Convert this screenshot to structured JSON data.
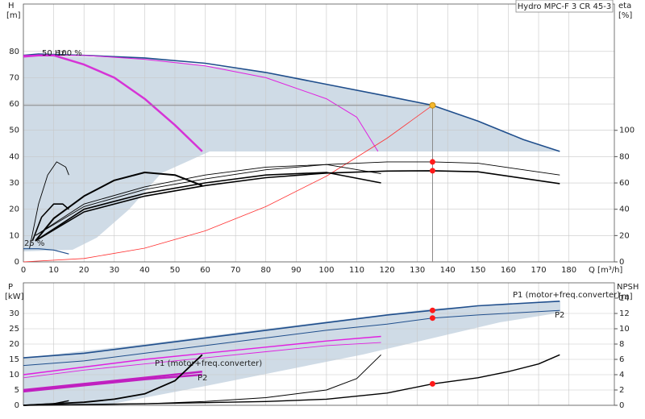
{
  "chart_data": [
    {
      "type": "line",
      "title": "Hydro MPC-F 3 CR 45-3",
      "y_label": "H",
      "y_unit": "[m]",
      "y2_label": "eta",
      "y2_unit": "[%]",
      "x_label": "Q [m³/h]",
      "annotations": [
        "50 Hz",
        "100 %",
        "25 %"
      ],
      "xlim": [
        0,
        195
      ],
      "xticks": [
        0,
        10,
        20,
        30,
        40,
        50,
        60,
        70,
        80,
        90,
        100,
        110,
        120,
        130,
        140,
        150,
        160,
        170,
        180
      ],
      "ylim": [
        0,
        98
      ],
      "yticks": [
        0,
        10,
        20,
        30,
        40,
        50,
        60,
        70,
        80
      ],
      "y2lim": [
        0,
        196
      ],
      "y2ticks": [
        0,
        20,
        40,
        60,
        80,
        100
      ],
      "grid": true,
      "series": [
        {
          "color": "#1f4e8c",
          "width": 1.6,
          "x": [
            0,
            5,
            20,
            40,
            60,
            80,
            100,
            120,
            135,
            150,
            165,
            177
          ],
          "values": [
            78.5,
            79,
            78.5,
            77.5,
            75.5,
            72,
            67.5,
            63,
            59.5,
            53.5,
            46.5,
            42
          ]
        },
        {
          "color": "#d633d6",
          "width": 2.5,
          "x": [
            0,
            5,
            10,
            20,
            30,
            40,
            50,
            59
          ],
          "values": [
            78,
            78.5,
            78.5,
            75,
            70,
            62,
            52,
            42
          ]
        },
        {
          "color": "#e020e0",
          "width": 1,
          "x": [
            0,
            20,
            40,
            60,
            80,
            100,
            110,
            117
          ],
          "values": [
            78.5,
            78.5,
            77,
            74.5,
            70,
            62,
            55,
            42
          ]
        },
        {
          "color": "#ff3030",
          "width": 0.8,
          "x": [
            0,
            20,
            40,
            60,
            80,
            100,
            120,
            135
          ],
          "values": [
            0,
            1.3,
            5.2,
            11.8,
            21,
            32.6,
            47,
            59.5
          ]
        },
        {
          "color": "#8a8a8a",
          "width": 1,
          "x": [
            135,
            135
          ],
          "values": [
            0,
            59.5
          ]
        },
        {
          "color": "#8a8a8a",
          "width": 1,
          "x": [
            0,
            135
          ],
          "values": [
            59.5,
            59.5
          ]
        },
        {
          "color": "#000000",
          "width": 1.6,
          "axis": "y2",
          "x": [
            4,
            20,
            40,
            60,
            80,
            100,
            120,
            135,
            150,
            177
          ],
          "values": [
            16,
            38,
            50,
            58,
            64,
            67.5,
            69,
            69.3,
            68.5,
            59.5
          ]
        },
        {
          "color": "#000000",
          "width": 0.9,
          "axis": "y2",
          "x": [
            4,
            20,
            40,
            60,
            80,
            100,
            120,
            135,
            150,
            177
          ],
          "values": [
            20,
            42,
            55,
            63,
            70,
            74,
            76,
            76,
            75,
            66
          ]
        },
        {
          "color": "#000000",
          "width": 1.6,
          "axis": "y2",
          "x": [
            4,
            20,
            40,
            60,
            80,
            100,
            118
          ],
          "values": [
            16,
            40,
            52,
            60,
            66,
            68,
            60
          ]
        },
        {
          "color": "#000000",
          "width": 0.9,
          "axis": "y2",
          "x": [
            4,
            20,
            40,
            60,
            80,
            100,
            118
          ],
          "values": [
            20,
            44,
            57,
            66,
            72,
            74,
            67
          ]
        },
        {
          "color": "#000000",
          "width": 2,
          "axis": "y2",
          "x": [
            4,
            10,
            20,
            30,
            40,
            50,
            59
          ],
          "values": [
            16,
            33,
            50,
            62,
            68,
            66,
            58
          ]
        },
        {
          "color": "#000000",
          "width": 0.9,
          "x": [
            2,
            5,
            8,
            11,
            14,
            15
          ],
          "values": [
            5,
            22,
            33,
            38,
            36,
            33
          ]
        },
        {
          "color": "#000000",
          "width": 1.6,
          "x": [
            3,
            6,
            10,
            13,
            15
          ],
          "values": [
            8,
            17,
            22,
            22,
            20
          ]
        },
        {
          "color": "#1f4e8c",
          "width": 1.2,
          "x": [
            0,
            5,
            10,
            15
          ],
          "values": [
            5,
            5,
            4.5,
            3
          ]
        },
        {
          "color": "#f5b82e",
          "marker": true,
          "x": [
            135
          ],
          "values": [
            59.5
          ]
        },
        {
          "color": "#ff1a1a",
          "marker": true,
          "axis": "y2",
          "x": [
            135
          ],
          "values": [
            76
          ]
        },
        {
          "color": "#ff1a1a",
          "marker": true,
          "axis": "y2",
          "x": [
            135
          ],
          "values": [
            69.3
          ]
        }
      ]
    },
    {
      "type": "line",
      "y_label": "P",
      "y_unit": "[kW]",
      "y2_label": "NPSH",
      "y2_unit": "[m]",
      "annotations": [
        "P1 (motor+freq.converter)",
        "P2",
        "P1 (motor+freq.converter)",
        "P2"
      ],
      "xlim": [
        0,
        195
      ],
      "xticks": [
        0,
        10,
        20,
        30,
        40,
        50,
        60,
        70,
        80,
        90,
        100,
        110,
        120,
        130,
        140,
        150,
        160,
        170,
        180
      ],
      "ylim": [
        0,
        40
      ],
      "yticks": [
        0,
        5,
        10,
        15,
        20,
        25,
        30
      ],
      "y2lim": [
        0,
        16
      ],
      "y2ticks": [
        0,
        2,
        4,
        6,
        8,
        10,
        12,
        14
      ],
      "grid": true,
      "series": [
        {
          "color": "#1f4e8c",
          "width": 1.6,
          "x": [
            0,
            20,
            40,
            60,
            80,
            100,
            120,
            135,
            150,
            177
          ],
          "values": [
            15.5,
            17,
            19.5,
            22,
            24.5,
            27,
            29.5,
            31,
            32.5,
            34
          ]
        },
        {
          "color": "#1f4e8c",
          "width": 1,
          "x": [
            0,
            20,
            40,
            60,
            80,
            100,
            120,
            135,
            150,
            177
          ],
          "values": [
            13,
            14.5,
            17,
            19.5,
            22,
            24.5,
            26.5,
            28.5,
            29.5,
            31
          ]
        },
        {
          "color": "#e020e0",
          "width": 1.4,
          "x": [
            0,
            20,
            40,
            60,
            80,
            100,
            118
          ],
          "values": [
            10,
            12.5,
            15,
            17,
            19,
            21,
            22.5
          ]
        },
        {
          "color": "#e020e0",
          "width": 0.9,
          "x": [
            0,
            20,
            40,
            60,
            80,
            100,
            118
          ],
          "values": [
            9,
            11.5,
            13.5,
            15.5,
            17.5,
            19.5,
            20.5
          ]
        },
        {
          "color": "#c020c0",
          "width": 2.5,
          "x": [
            0,
            20,
            40,
            59
          ],
          "values": [
            5,
            7,
            9,
            11
          ]
        },
        {
          "color": "#c020c0",
          "width": 2.5,
          "x": [
            0,
            20,
            40,
            59
          ],
          "values": [
            4.5,
            6.5,
            8.5,
            10
          ]
        },
        {
          "color": "#000000",
          "width": 1.4,
          "axis": "y2",
          "x": [
            0,
            40,
            80,
            100,
            120,
            135,
            150,
            160,
            170,
            177
          ],
          "values": [
            0,
            0.2,
            0.5,
            0.8,
            1.6,
            2.8,
            3.6,
            4.4,
            5.4,
            6.6
          ]
        },
        {
          "color": "#000000",
          "width": 1,
          "axis": "y2",
          "x": [
            0,
            40,
            60,
            80,
            100,
            110,
            118
          ],
          "values": [
            0,
            0.2,
            0.5,
            1,
            2,
            3.5,
            6.6
          ]
        },
        {
          "color": "#000000",
          "width": 1.8,
          "axis": "y2",
          "x": [
            0,
            20,
            30,
            40,
            50,
            59
          ],
          "values": [
            0,
            0.4,
            0.8,
            1.5,
            3.2,
            6.6
          ]
        },
        {
          "color": "#000000",
          "width": 1.4,
          "axis": "y2",
          "x": [
            0,
            10,
            15
          ],
          "values": [
            0,
            0.2,
            0.6
          ]
        },
        {
          "color": "#ff1a1a",
          "marker": true,
          "x": [
            135
          ],
          "values": [
            31
          ]
        },
        {
          "color": "#ff1a1a",
          "marker": true,
          "x": [
            135
          ],
          "values": [
            28.5
          ]
        },
        {
          "color": "#ff1a1a",
          "marker": true,
          "axis": "y2",
          "x": [
            135
          ],
          "values": [
            2.8
          ]
        }
      ]
    }
  ]
}
